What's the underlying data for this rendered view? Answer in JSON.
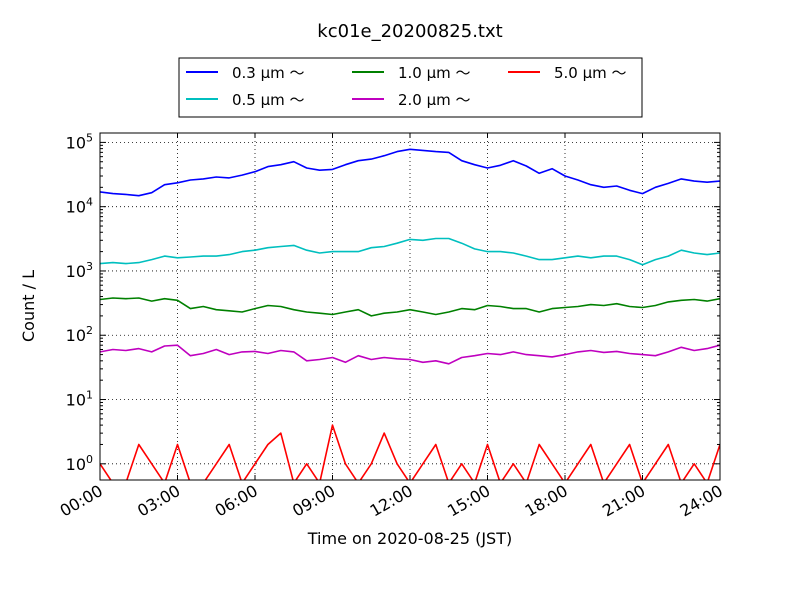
{
  "chart_data": {
    "type": "line",
    "title": "kc01e_20200825.txt",
    "xlabel": "Time on 2020-08-25 (JST)",
    "ylabel": "Count / L",
    "x_unit": "hours",
    "xlim": [
      0,
      24
    ],
    "ylim": [
      0.56,
      140000
    ],
    "yscale": "log",
    "grid": true,
    "legend_position": "top-center, above plot",
    "x_tick_labels": [
      "00:00",
      "03:00",
      "06:00",
      "09:00",
      "12:00",
      "15:00",
      "18:00",
      "21:00",
      "24:00"
    ],
    "y_tick_labels": [
      {
        "base": "10",
        "exp": "0"
      },
      {
        "base": "10",
        "exp": "1"
      },
      {
        "base": "10",
        "exp": "2"
      },
      {
        "base": "10",
        "exp": "3"
      },
      {
        "base": "10",
        "exp": "4"
      },
      {
        "base": "10",
        "exp": "5"
      }
    ],
    "series": [
      {
        "name": "0.3 μm ～",
        "color": "#0000ff",
        "x": [
          0,
          0.5,
          1,
          1.5,
          2,
          2.5,
          3,
          3.5,
          4,
          4.5,
          5,
          5.5,
          6,
          6.5,
          7,
          7.5,
          8,
          8.5,
          9,
          9.5,
          10,
          10.5,
          11,
          11.5,
          12,
          12.5,
          13,
          13.5,
          14,
          14.5,
          15,
          15.5,
          16,
          16.5,
          17,
          17.5,
          18,
          18.5,
          19,
          19.5,
          20,
          20.5,
          21,
          21.5,
          22,
          22.5,
          23,
          23.5,
          24
        ],
        "values": [
          17000,
          16000,
          15500,
          14800,
          16500,
          22000,
          23500,
          26000,
          27000,
          29000,
          28000,
          31000,
          35000,
          42000,
          45000,
          50000,
          40000,
          37000,
          38000,
          45000,
          52000,
          55000,
          62000,
          72000,
          78000,
          75000,
          72000,
          70000,
          52000,
          45000,
          40000,
          44000,
          52000,
          43000,
          33000,
          39000,
          30000,
          26000,
          22000,
          20000,
          21000,
          18000,
          16000,
          20000,
          23000,
          27000,
          25000,
          24000,
          25000
        ]
      },
      {
        "name": "0.5 μm ～",
        "color": "#00bfbf",
        "x": [
          0,
          0.5,
          1,
          1.5,
          2,
          2.5,
          3,
          3.5,
          4,
          4.5,
          5,
          5.5,
          6,
          6.5,
          7,
          7.5,
          8,
          8.5,
          9,
          9.5,
          10,
          10.5,
          11,
          11.5,
          12,
          12.5,
          13,
          13.5,
          14,
          14.5,
          15,
          15.5,
          16,
          16.5,
          17,
          17.5,
          18,
          18.5,
          19,
          19.5,
          20,
          20.5,
          21,
          21.5,
          22,
          22.5,
          23,
          23.5,
          24
        ],
        "values": [
          1300,
          1350,
          1300,
          1350,
          1500,
          1700,
          1600,
          1650,
          1700,
          1700,
          1800,
          2000,
          2100,
          2300,
          2400,
          2500,
          2100,
          1900,
          2000,
          2000,
          2000,
          2300,
          2400,
          2700,
          3100,
          3000,
          3200,
          3200,
          2700,
          2200,
          2000,
          2000,
          1900,
          1700,
          1500,
          1500,
          1600,
          1700,
          1600,
          1700,
          1700,
          1500,
          1250,
          1500,
          1700,
          2100,
          1900,
          1800,
          1900
        ]
      },
      {
        "name": "1.0 μm ～",
        "color": "#008000",
        "x": [
          0,
          0.5,
          1,
          1.5,
          2,
          2.5,
          3,
          3.5,
          4,
          4.5,
          5,
          5.5,
          6,
          6.5,
          7,
          7.5,
          8,
          8.5,
          9,
          9.5,
          10,
          10.5,
          11,
          11.5,
          12,
          12.5,
          13,
          13.5,
          14,
          14.5,
          15,
          15.5,
          16,
          16.5,
          17,
          17.5,
          18,
          18.5,
          19,
          19.5,
          20,
          20.5,
          21,
          21.5,
          22,
          22.5,
          23,
          23.5,
          24
        ],
        "values": [
          360,
          380,
          370,
          380,
          340,
          370,
          350,
          260,
          280,
          250,
          240,
          230,
          260,
          290,
          280,
          250,
          230,
          220,
          210,
          230,
          250,
          200,
          220,
          230,
          250,
          230,
          210,
          230,
          260,
          250,
          290,
          280,
          260,
          260,
          230,
          260,
          270,
          280,
          300,
          290,
          310,
          280,
          270,
          290,
          330,
          350,
          360,
          340,
          370
        ]
      },
      {
        "name": "2.0 μm ～",
        "color": "#bf00bf",
        "x": [
          0,
          0.5,
          1,
          1.5,
          2,
          2.5,
          3,
          3.5,
          4,
          4.5,
          5,
          5.5,
          6,
          6.5,
          7,
          7.5,
          8,
          8.5,
          9,
          9.5,
          10,
          10.5,
          11,
          11.5,
          12,
          12.5,
          13,
          13.5,
          14,
          14.5,
          15,
          15.5,
          16,
          16.5,
          17,
          17.5,
          18,
          18.5,
          19,
          19.5,
          20,
          20.5,
          21,
          21.5,
          22,
          22.5,
          23,
          23.5,
          24
        ],
        "values": [
          55,
          60,
          58,
          62,
          55,
          68,
          70,
          48,
          52,
          60,
          50,
          55,
          56,
          52,
          58,
          55,
          40,
          42,
          45,
          38,
          48,
          42,
          45,
          43,
          42,
          38,
          40,
          36,
          45,
          48,
          52,
          50,
          55,
          50,
          48,
          46,
          50,
          55,
          58,
          54,
          56,
          52,
          50,
          48,
          55,
          65,
          58,
          62,
          70
        ]
      },
      {
        "name": "5.0 μm ～",
        "color": "#ff0000",
        "x": [
          0,
          0.5,
          1,
          1.5,
          2,
          2.5,
          3,
          3.5,
          4,
          4.5,
          5,
          5.5,
          6,
          6.5,
          7,
          7.5,
          8,
          8.5,
          9,
          9.5,
          10,
          10.5,
          11,
          11.5,
          12,
          12.5,
          13,
          13.5,
          14,
          14.5,
          15,
          15.5,
          16,
          16.5,
          17,
          17.5,
          18,
          18.5,
          19,
          19.5,
          20,
          20.5,
          21,
          21.5,
          22,
          22.5,
          23,
          23.5,
          24
        ],
        "values": [
          1,
          0.5,
          0.5,
          2,
          1,
          0.5,
          2,
          0.5,
          0.5,
          1,
          2,
          0.5,
          1,
          2,
          3,
          0.5,
          1,
          0.5,
          4,
          1,
          0.5,
          1,
          3,
          1,
          0.5,
          1,
          2,
          0.5,
          1,
          0.5,
          2,
          0.5,
          1,
          0.5,
          2,
          1,
          0.5,
          1,
          2,
          0.5,
          1,
          2,
          0.5,
          1,
          2,
          0.5,
          1,
          0.5,
          2
        ]
      }
    ]
  }
}
